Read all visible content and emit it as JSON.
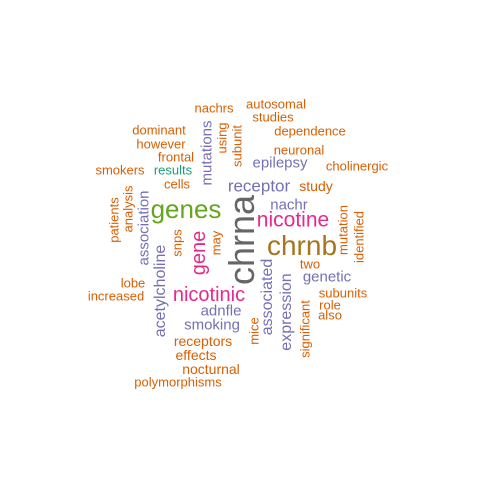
{
  "colors": {
    "orange": "#d95f02",
    "purple": "#7570b3",
    "teal": "#1b9e77",
    "green": "#66a61e",
    "magenta": "#e7298a",
    "gold": "#a6761d",
    "gray": "#666666"
  },
  "words": [
    {
      "text": "chrna",
      "color": "gray",
      "rot": true
    },
    {
      "text": "chrnb",
      "color": "gold",
      "rot": false
    },
    {
      "text": "genes",
      "color": "green",
      "rot": false
    },
    {
      "text": "nicotine",
      "color": "magenta",
      "rot": false
    },
    {
      "text": "nicotinic",
      "color": "magenta",
      "rot": false
    },
    {
      "text": "gene",
      "color": "magenta",
      "rot": true
    },
    {
      "text": "receptor",
      "color": "purple",
      "rot": false
    },
    {
      "text": "epilepsy",
      "color": "purple",
      "rot": false
    },
    {
      "text": "smoking",
      "color": "purple",
      "rot": false
    },
    {
      "text": "acetylcholine",
      "color": "purple",
      "rot": true
    },
    {
      "text": "association",
      "color": "purple",
      "rot": true
    },
    {
      "text": "mutations",
      "color": "purple",
      "rot": true
    },
    {
      "text": "expression",
      "color": "purple",
      "rot": true
    },
    {
      "text": "associated",
      "color": "purple",
      "rot": true
    },
    {
      "text": "nachr",
      "color": "purple",
      "rot": false
    },
    {
      "text": "genetic",
      "color": "purple",
      "rot": false
    },
    {
      "text": "adnfle",
      "color": "purple",
      "rot": false
    },
    {
      "text": "results",
      "color": "teal",
      "rot": false
    },
    {
      "text": "nachrs",
      "color": "orange",
      "rot": false
    },
    {
      "text": "autosomal",
      "color": "orange",
      "rot": false
    },
    {
      "text": "studies",
      "color": "orange",
      "rot": false
    },
    {
      "text": "dominant",
      "color": "orange",
      "rot": false
    },
    {
      "text": "dependence",
      "color": "orange",
      "rot": false
    },
    {
      "text": "however",
      "color": "orange",
      "rot": false
    },
    {
      "text": "neuronal",
      "color": "orange",
      "rot": false
    },
    {
      "text": "using",
      "color": "orange",
      "rot": true
    },
    {
      "text": "subunit",
      "color": "orange",
      "rot": true
    },
    {
      "text": "frontal",
      "color": "orange",
      "rot": false
    },
    {
      "text": "smokers",
      "color": "orange",
      "rot": false
    },
    {
      "text": "cholinergic",
      "color": "orange",
      "rot": false
    },
    {
      "text": "cells",
      "color": "orange",
      "rot": false
    },
    {
      "text": "study",
      "color": "orange",
      "rot": false
    },
    {
      "text": "analysis",
      "color": "orange",
      "rot": true
    },
    {
      "text": "patients",
      "color": "orange",
      "rot": true
    },
    {
      "text": "snps",
      "color": "orange",
      "rot": true
    },
    {
      "text": "may",
      "color": "orange",
      "rot": true
    },
    {
      "text": "mutation",
      "color": "orange",
      "rot": true
    },
    {
      "text": "identified",
      "color": "orange",
      "rot": true
    },
    {
      "text": "two",
      "color": "orange",
      "rot": false
    },
    {
      "text": "lobe",
      "color": "orange",
      "rot": false
    },
    {
      "text": "increased",
      "color": "orange",
      "rot": false
    },
    {
      "text": "subunits",
      "color": "orange",
      "rot": false
    },
    {
      "text": "role",
      "color": "orange",
      "rot": false
    },
    {
      "text": "also",
      "color": "orange",
      "rot": false
    },
    {
      "text": "mice",
      "color": "orange",
      "rot": true
    },
    {
      "text": "significant",
      "color": "orange",
      "rot": true
    },
    {
      "text": "receptors",
      "color": "orange",
      "rot": false
    },
    {
      "text": "effects",
      "color": "orange",
      "rot": false
    },
    {
      "text": "nocturnal",
      "color": "orange",
      "rot": false
    },
    {
      "text": "polymorphisms",
      "color": "orange",
      "rot": false
    }
  ]
}
